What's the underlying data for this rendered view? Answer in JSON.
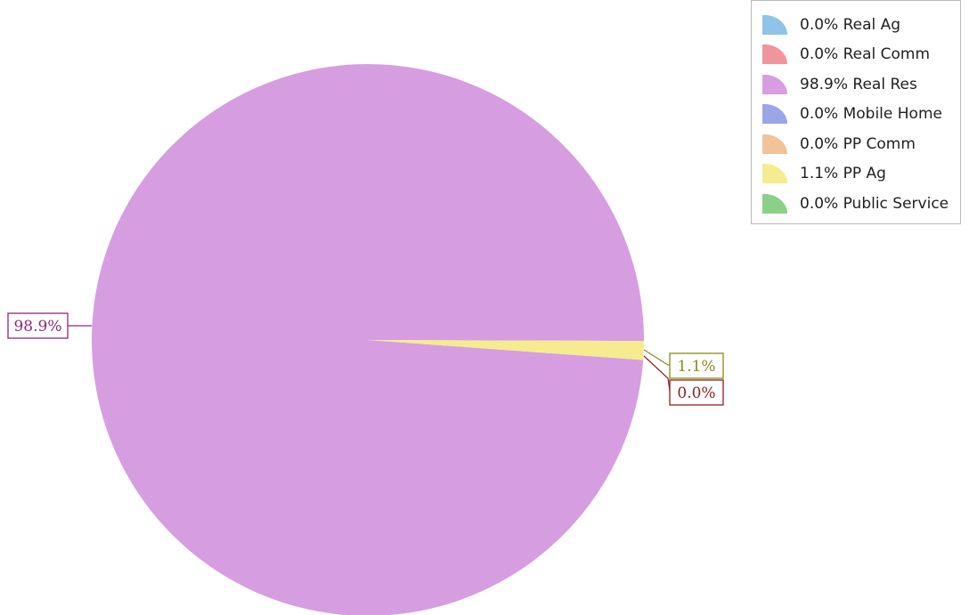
{
  "chart_data": {
    "type": "pie",
    "title": "",
    "slices": [
      {
        "label": "Real Ag",
        "value": 0.0,
        "legend_text": "0.0% Real Ag",
        "color": "#8fc3ea"
      },
      {
        "label": "Real Comm",
        "value": 0.0,
        "legend_text": "0.0% Real Comm",
        "color": "#f0949e"
      },
      {
        "label": "Real Res",
        "value": 98.9,
        "legend_text": "98.9% Real Res",
        "color": "#d69ee0"
      },
      {
        "label": "Mobile Home",
        "value": 0.0,
        "legend_text": "0.0% Mobile Home",
        "color": "#9aa6e6"
      },
      {
        "label": "PP Comm",
        "value": 0.0,
        "legend_text": "0.0% PP Comm",
        "color": "#f3c29a"
      },
      {
        "label": "PP Ag",
        "value": 1.1,
        "legend_text": "1.1% PP Ag",
        "color": "#f4ec8e"
      },
      {
        "label": "Public Service",
        "value": 0.0,
        "legend_text": "0.0% Public Service",
        "color": "#8ccf8a"
      }
    ],
    "data_labels": [
      {
        "text": "98.9%",
        "slice": "Real Res",
        "border_color": "#8a2a7a"
      },
      {
        "text": "1.1%",
        "slice": "PP Ag",
        "border_color": "#8a8a1a"
      },
      {
        "text": "0.0%",
        "slice": "Real Comm",
        "border_color": "#8a1f1f"
      }
    ],
    "legend_position": "top-right"
  }
}
